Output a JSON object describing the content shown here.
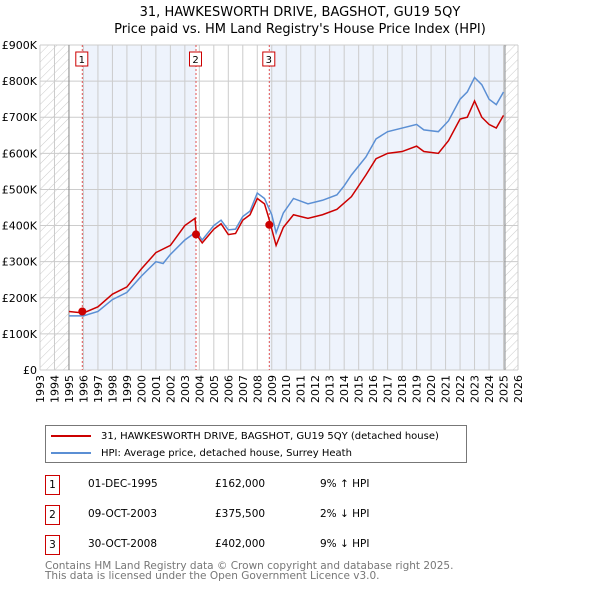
{
  "chart_data": {
    "type": "line",
    "title": "31, HAWKESWORTH DRIVE, BAGSHOT, GU19 5QY",
    "subtitle": "Price paid vs. HM Land Registry's House Price Index (HPI)",
    "xlim": [
      1993,
      2026
    ],
    "ylim": [
      0,
      900000
    ],
    "x_ticks": [
      "1993",
      "1994",
      "1995",
      "1996",
      "1997",
      "1998",
      "1999",
      "2000",
      "2001",
      "2002",
      "2003",
      "2004",
      "2005",
      "2006",
      "2007",
      "2008",
      "2009",
      "2010",
      "2011",
      "2012",
      "2013",
      "2014",
      "2015",
      "2016",
      "2017",
      "2018",
      "2019",
      "2020",
      "2021",
      "2022",
      "2023",
      "2024",
      "2025",
      "2026"
    ],
    "y_ticks": [
      {
        "v": 0,
        "l": "£0"
      },
      {
        "v": 100000,
        "l": "£100K"
      },
      {
        "v": 200000,
        "l": "£200K"
      },
      {
        "v": 300000,
        "l": "£300K"
      },
      {
        "v": 400000,
        "l": "£400K"
      },
      {
        "v": 500000,
        "l": "£500K"
      },
      {
        "v": 600000,
        "l": "£600K"
      },
      {
        "v": 700000,
        "l": "£700K"
      },
      {
        "v": 800000,
        "l": "£800K"
      },
      {
        "v": 900000,
        "l": "£900K"
      }
    ],
    "grid": true,
    "hatched_ranges": [
      [
        1993,
        1995
      ],
      [
        2025.1,
        2026
      ]
    ],
    "series": [
      {
        "name": "31, HAWKESWORTH DRIVE, BAGSHOT, GU19 5QY (detached house)",
        "color": "#cc0000",
        "x": [
          1995,
          1996,
          1997,
          1998,
          1999,
          2000,
          2001,
          2002,
          2003,
          2003.7,
          2003.8,
          2004.2,
          2005,
          2005.5,
          2006,
          2006.5,
          2007,
          2007.5,
          2008,
          2008.5,
          2008.8,
          2009.3,
          2009.8,
          2010.5,
          2011.5,
          2012.5,
          2013.5,
          2014.5,
          2015.5,
          2016.2,
          2017,
          2018,
          2019,
          2019.5,
          2020.5,
          2021.2,
          2022,
          2022.5,
          2023,
          2023.5,
          2024,
          2024.5,
          2025
        ],
        "y": [
          162000,
          158000,
          175000,
          210000,
          230000,
          280000,
          325000,
          345000,
          400000,
          420000,
          375000,
          352000,
          390000,
          405000,
          375000,
          378000,
          415000,
          430000,
          475000,
          460000,
          420000,
          345000,
          395000,
          430000,
          420000,
          430000,
          445000,
          480000,
          540000,
          585000,
          600000,
          605000,
          620000,
          605000,
          600000,
          635000,
          695000,
          700000,
          745000,
          700000,
          680000,
          670000,
          705000
        ]
      },
      {
        "name": "HPI: Average price, detached house, Surrey Heath",
        "color": "#5b8fd4",
        "x": [
          1995,
          1996,
          1997,
          1998,
          1999,
          2000,
          2001,
          2001.5,
          2002,
          2003,
          2003.8,
          2004.2,
          2005,
          2005.5,
          2006,
          2006.5,
          2007,
          2007.5,
          2008,
          2008.5,
          2009,
          2009.3,
          2009.8,
          2010.5,
          2011.5,
          2012.5,
          2013.5,
          2014,
          2014.5,
          2015.5,
          2016.2,
          2017,
          2018,
          2019,
          2019.5,
          2020.5,
          2021.2,
          2022,
          2022.5,
          2023,
          2023.5,
          2024,
          2024.5,
          2025
        ],
        "y": [
          150000,
          150000,
          162000,
          195000,
          215000,
          260000,
          300000,
          295000,
          320000,
          360000,
          383000,
          360000,
          400000,
          415000,
          388000,
          390000,
          425000,
          440000,
          490000,
          475000,
          430000,
          380000,
          435000,
          475000,
          460000,
          470000,
          485000,
          510000,
          540000,
          590000,
          640000,
          660000,
          670000,
          680000,
          665000,
          660000,
          690000,
          750000,
          770000,
          810000,
          790000,
          750000,
          735000,
          770000
        ]
      }
    ],
    "sales": [
      {
        "n": "1",
        "x": 1995.92,
        "y": 162000,
        "date": "01-DEC-1995",
        "price": "£162,000",
        "hpi": "9% ↑ HPI"
      },
      {
        "n": "2",
        "x": 2003.77,
        "y": 375500,
        "date": "09-OCT-2003",
        "price": "£375,500",
        "hpi": "2% ↓ HPI"
      },
      {
        "n": "3",
        "x": 2008.83,
        "y": 402000,
        "date": "30-OCT-2008",
        "price": "£402,000",
        "hpi": "9% ↓ HPI"
      }
    ]
  },
  "footer": {
    "line1": "Contains HM Land Registry data © Crown copyright and database right 2025.",
    "line2": "This data is licensed under the Open Government Licence v3.0."
  }
}
